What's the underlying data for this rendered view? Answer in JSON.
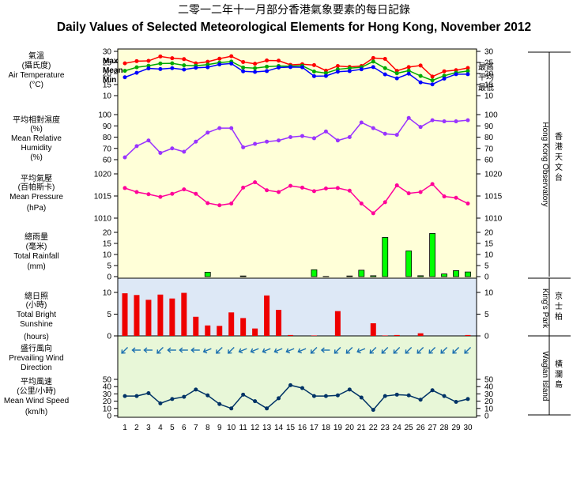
{
  "title_zh": "二零一二年十一月部分香港氣象要素的每日記錄",
  "title_en": "Daily Values of Selected Meteorological Elements for Hong Kong, November 2012",
  "left_labels": {
    "temperature": [
      "氣溫",
      "(攝氏度)",
      "Air Temperature",
      "(°C)"
    ],
    "humidity": [
      "平均相對濕度",
      "(%)",
      "Mean Relative",
      "Humidity",
      "(%)"
    ],
    "pressure": [
      "平均氣壓",
      "(百帕斯卡)",
      "Mean Pressure",
      "(hPa)"
    ],
    "rainfall": [
      "總雨量",
      "(毫米)",
      "Total Rainfall",
      "(mm)"
    ],
    "sunshine": [
      "總日照",
      "(小時)",
      "Total Bright",
      "Sunshine",
      "(hours)"
    ],
    "wind_dir": [
      "盛行風向",
      "Prevailing Wind",
      "Direction"
    ],
    "wind_speed": [
      "平均風速",
      "(公里/小時)",
      "Mean Wind Speed",
      "(km/h)"
    ]
  },
  "temp_legend_left": [
    "Max",
    "Mean",
    "Min"
  ],
  "temp_legend_right": [
    "最高",
    "平均",
    "最低"
  ],
  "stations": {
    "hko_en": "Hong Kong Observatory",
    "hko_zh": "香港天文台",
    "kp_en": "King's Park",
    "kp_zh": "京士柏",
    "wi_en": "Waglan Island",
    "wi_zh": "橫瀾島"
  },
  "colors": {
    "max": "#ff0000",
    "mean": "#00aa00",
    "min": "#0000ff",
    "humidity": "#9933ff",
    "pressure": "#ff0099",
    "rain": "#00ff00",
    "sunshine": "#ee0000",
    "wind": "#003366",
    "wind_arrow": "#1a6faf",
    "bg_hko": "#ffffd8",
    "bg_kp": "#dde8f6",
    "bg_wi": "#e8f7d8"
  },
  "chart_data": [
    {
      "type": "line",
      "name": "Air Temperature",
      "x": [
        1,
        2,
        3,
        4,
        5,
        6,
        7,
        8,
        9,
        10,
        11,
        12,
        13,
        14,
        15,
        16,
        17,
        18,
        19,
        20,
        21,
        22,
        23,
        24,
        25,
        26,
        27,
        28,
        29,
        30
      ],
      "series": [
        {
          "name": "Max",
          "values": [
            24.6,
            25.6,
            25.7,
            27.7,
            26.9,
            26.5,
            24.6,
            25.3,
            26.7,
            27.8,
            25.2,
            24.4,
            25.9,
            25.8,
            23.9,
            24.2,
            23.8,
            21.3,
            23.4,
            23.0,
            23.4,
            27.0,
            26.6,
            21.2,
            22.9,
            23.6,
            18.6,
            21.0,
            21.5,
            22.5
          ]
        },
        {
          "name": "Mean",
          "values": [
            21.2,
            22.8,
            23.5,
            24.5,
            24.6,
            23.7,
            23.5,
            24.0,
            24.9,
            25.4,
            22.7,
            22.4,
            23.1,
            23.4,
            23.3,
            23.5,
            20.9,
            20.2,
            21.9,
            22.4,
            22.8,
            25.4,
            22.4,
            20.1,
            21.3,
            18.9,
            16.9,
            19.0,
            20.4,
            21.1
          ]
        },
        {
          "name": "Min",
          "values": [
            18.3,
            20.3,
            22.3,
            22.0,
            22.4,
            21.8,
            22.6,
            22.8,
            24.1,
            24.5,
            21.0,
            20.7,
            21.1,
            22.7,
            22.9,
            22.8,
            18.8,
            18.9,
            20.8,
            21.1,
            21.9,
            22.9,
            19.6,
            17.8,
            19.9,
            16.0,
            15.1,
            17.7,
            19.7,
            19.7
          ]
        }
      ],
      "ylim": [
        10,
        30
      ]
    },
    {
      "type": "line",
      "name": "Mean Relative Humidity",
      "x": [
        1,
        2,
        3,
        4,
        5,
        6,
        7,
        8,
        9,
        10,
        11,
        12,
        13,
        14,
        15,
        16,
        17,
        18,
        19,
        20,
        21,
        22,
        23,
        24,
        25,
        26,
        27,
        28,
        29,
        30
      ],
      "values": [
        62,
        72,
        77,
        66,
        70,
        67,
        76,
        84,
        88,
        88,
        71,
        74,
        76,
        77,
        80,
        81,
        79,
        85,
        77,
        80,
        93,
        88,
        83,
        82,
        97,
        89,
        95,
        94,
        94,
        95
      ],
      "ylim": [
        60,
        100
      ]
    },
    {
      "type": "line",
      "name": "Mean Pressure",
      "x": [
        1,
        2,
        3,
        4,
        5,
        6,
        7,
        8,
        9,
        10,
        11,
        12,
        13,
        14,
        15,
        16,
        17,
        18,
        19,
        20,
        21,
        22,
        23,
        24,
        25,
        26,
        27,
        28,
        29,
        30
      ],
      "values": [
        1016.8,
        1015.9,
        1015.4,
        1014.8,
        1015.5,
        1016.5,
        1015.5,
        1013.4,
        1012.9,
        1013.3,
        1016.9,
        1018.1,
        1016.3,
        1015.9,
        1017.3,
        1016.9,
        1016.1,
        1016.7,
        1016.8,
        1016.2,
        1013.3,
        1011.1,
        1013.6,
        1017.4,
        1015.6,
        1015.9,
        1017.7,
        1014.9,
        1014.6,
        1013.3
      ],
      "ylim": [
        1010,
        1020
      ]
    },
    {
      "type": "bar",
      "name": "Total Rainfall",
      "x": [
        1,
        2,
        3,
        4,
        5,
        6,
        7,
        8,
        9,
        10,
        11,
        12,
        13,
        14,
        15,
        16,
        17,
        18,
        19,
        20,
        21,
        22,
        23,
        24,
        25,
        26,
        27,
        28,
        29,
        30
      ],
      "values": [
        0,
        0,
        0,
        0,
        0,
        0,
        0,
        2.0,
        0,
        0,
        0.3,
        0,
        0,
        0,
        0,
        0,
        3.1,
        0.1,
        0,
        0.3,
        2.9,
        0.4,
        17.7,
        0,
        11.6,
        0.4,
        19.5,
        1.2,
        2.7,
        2.1
      ],
      "ylim": [
        0,
        20
      ]
    },
    {
      "type": "bar",
      "name": "Total Bright Sunshine",
      "x": [
        1,
        2,
        3,
        4,
        5,
        6,
        7,
        8,
        9,
        10,
        11,
        12,
        13,
        14,
        15,
        16,
        17,
        18,
        19,
        20,
        21,
        22,
        23,
        24,
        25,
        26,
        27,
        28,
        29,
        30
      ],
      "values": [
        9.8,
        9.4,
        8.3,
        9.5,
        8.6,
        9.9,
        4.4,
        2.4,
        2.3,
        5.4,
        4.1,
        1.7,
        9.3,
        6.0,
        0.2,
        0,
        0.1,
        0,
        5.7,
        0,
        0,
        2.9,
        0.1,
        0.2,
        0,
        0.6,
        0,
        0,
        0,
        0.2
      ],
      "ylim": [
        0,
        12
      ]
    },
    {
      "type": "table",
      "name": "Prevailing Wind Direction",
      "x": [
        1,
        2,
        3,
        4,
        5,
        6,
        7,
        8,
        9,
        10,
        11,
        12,
        13,
        14,
        15,
        16,
        17,
        18,
        19,
        20,
        21,
        22,
        23,
        24,
        25,
        26,
        27,
        28,
        29,
        30
      ],
      "values": [
        "NE",
        "E",
        "E",
        "NE",
        "E",
        "E",
        "E",
        "ENE",
        "NE",
        "NE",
        "ENE",
        "ENE",
        "ENE",
        "ENE",
        "ENE",
        "ENE",
        "NE",
        "E",
        "NE",
        "NE",
        "ENE",
        "NE",
        "NE",
        "NE",
        "NE",
        "NE",
        "NE",
        "NE",
        "NE",
        "NE"
      ]
    },
    {
      "type": "line",
      "name": "Mean Wind Speed",
      "x": [
        1,
        2,
        3,
        4,
        5,
        6,
        7,
        8,
        9,
        10,
        11,
        12,
        13,
        14,
        15,
        16,
        17,
        18,
        19,
        20,
        21,
        22,
        23,
        24,
        25,
        26,
        27,
        28,
        29,
        30
      ],
      "values": [
        27,
        27,
        31,
        17,
        23,
        26,
        36,
        28,
        16,
        10,
        29,
        20,
        10,
        24,
        42,
        38,
        27,
        27,
        28,
        36,
        25,
        8,
        27,
        29,
        28,
        22,
        35,
        27,
        19,
        23
      ],
      "ylim": [
        0,
        50
      ]
    }
  ]
}
